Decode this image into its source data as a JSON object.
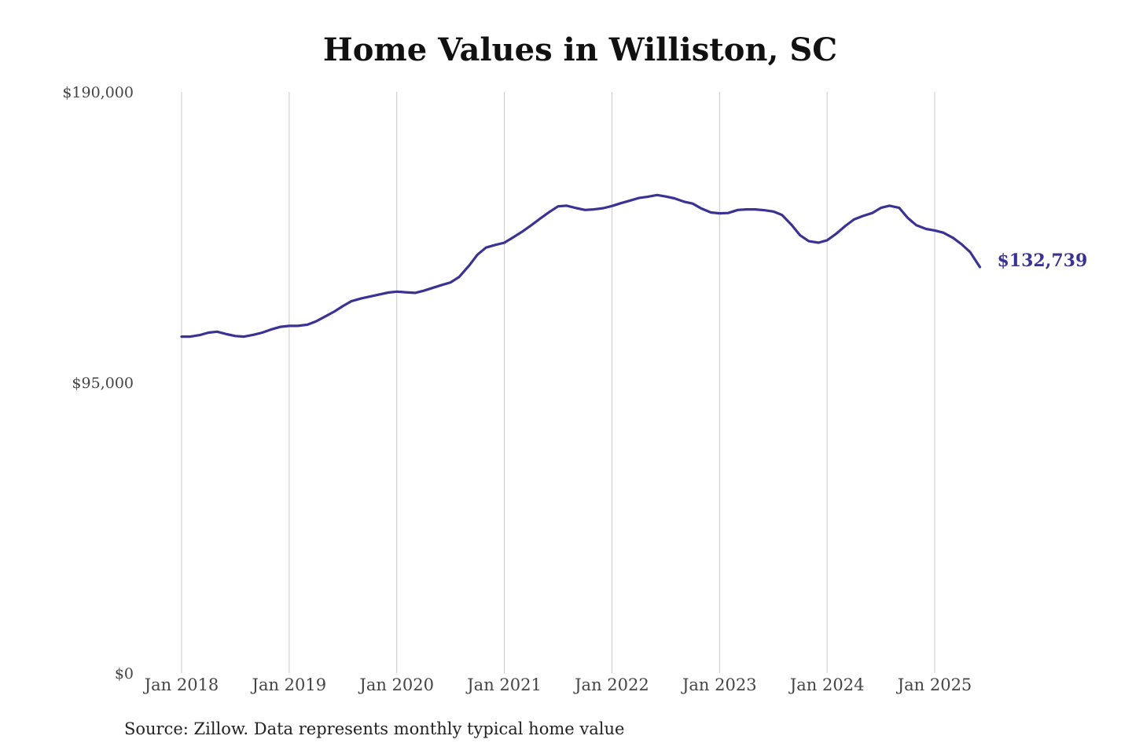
{
  "chart_data": {
    "type": "line",
    "title": "Home Values in Williston, SC",
    "xlabel": "",
    "ylabel": "",
    "ylim": [
      0,
      190000
    ],
    "yticks": [
      {
        "value": 0,
        "label": "$0"
      },
      {
        "value": 95000,
        "label": "$95,000"
      },
      {
        "value": 190000,
        "label": "$190,000"
      }
    ],
    "xticks": [
      {
        "value": 2018.0,
        "label": "Jan 2018"
      },
      {
        "value": 2019.0,
        "label": "Jan 2019"
      },
      {
        "value": 2020.0,
        "label": "Jan 2020"
      },
      {
        "value": 2021.0,
        "label": "Jan 2021"
      },
      {
        "value": 2022.0,
        "label": "Jan 2022"
      },
      {
        "value": 2023.0,
        "label": "Jan 2023"
      },
      {
        "value": 2024.0,
        "label": "Jan 2024"
      },
      {
        "value": 2025.0,
        "label": "Jan 2025"
      }
    ],
    "xlim": [
      2018.0,
      2025.42
    ],
    "grid": "vertical",
    "line_color": "#3a3393",
    "grid_color": "#c8c8c8",
    "series": [
      {
        "x": [
          2018.0,
          2018.08,
          2018.17,
          2018.25,
          2018.33,
          2018.42,
          2018.5,
          2018.58,
          2018.67,
          2018.75,
          2018.83,
          2018.92,
          2019.0,
          2019.08,
          2019.17,
          2019.25,
          2019.33,
          2019.42,
          2019.5,
          2019.58,
          2019.67,
          2019.75,
          2019.83,
          2019.92,
          2020.0,
          2020.08,
          2020.17,
          2020.25,
          2020.33,
          2020.42,
          2020.5,
          2020.58,
          2020.67,
          2020.75,
          2020.83,
          2020.92,
          2021.0,
          2021.08,
          2021.17,
          2021.25,
          2021.33,
          2021.42,
          2021.5,
          2021.58,
          2021.67,
          2021.75,
          2021.83,
          2021.92,
          2022.0,
          2022.08,
          2022.17,
          2022.25,
          2022.33,
          2022.42,
          2022.5,
          2022.58,
          2022.67,
          2022.75,
          2022.83,
          2022.92,
          2023.0,
          2023.08,
          2023.17,
          2023.25,
          2023.33,
          2023.42,
          2023.5,
          2023.58,
          2023.67,
          2023.75,
          2023.83,
          2023.92,
          2024.0,
          2024.08,
          2024.17,
          2024.25,
          2024.33,
          2024.42,
          2024.5,
          2024.58,
          2024.67,
          2024.75,
          2024.83,
          2024.92,
          2025.0,
          2025.08,
          2025.17,
          2025.25,
          2025.33,
          2025.42
        ],
        "values": [
          110000,
          110000,
          110500,
          111300,
          111600,
          110800,
          110200,
          110000,
          110600,
          111300,
          112300,
          113200,
          113500,
          113500,
          113900,
          115000,
          116500,
          118200,
          120000,
          121600,
          122500,
          123100,
          123700,
          124400,
          124700,
          124500,
          124300,
          125000,
          125900,
          126900,
          127700,
          129500,
          133100,
          136800,
          139100,
          140000,
          140700,
          142400,
          144400,
          146400,
          148500,
          150800,
          152600,
          152800,
          152000,
          151400,
          151600,
          152000,
          152700,
          153600,
          154500,
          155300,
          155700,
          156300,
          155800,
          155200,
          154100,
          153500,
          151900,
          150600,
          150300,
          150400,
          151400,
          151600,
          151600,
          151300,
          150900,
          149800,
          146500,
          143100,
          141200,
          140700,
          141500,
          143500,
          146200,
          148300,
          149400,
          150400,
          152100,
          152800,
          152100,
          148800,
          146400,
          145200,
          144700,
          144000,
          142300,
          140200,
          137600,
          132739
        ]
      }
    ],
    "end_label": "$132,739"
  },
  "source_note": "Source: Zillow. Data represents monthly typical home value"
}
